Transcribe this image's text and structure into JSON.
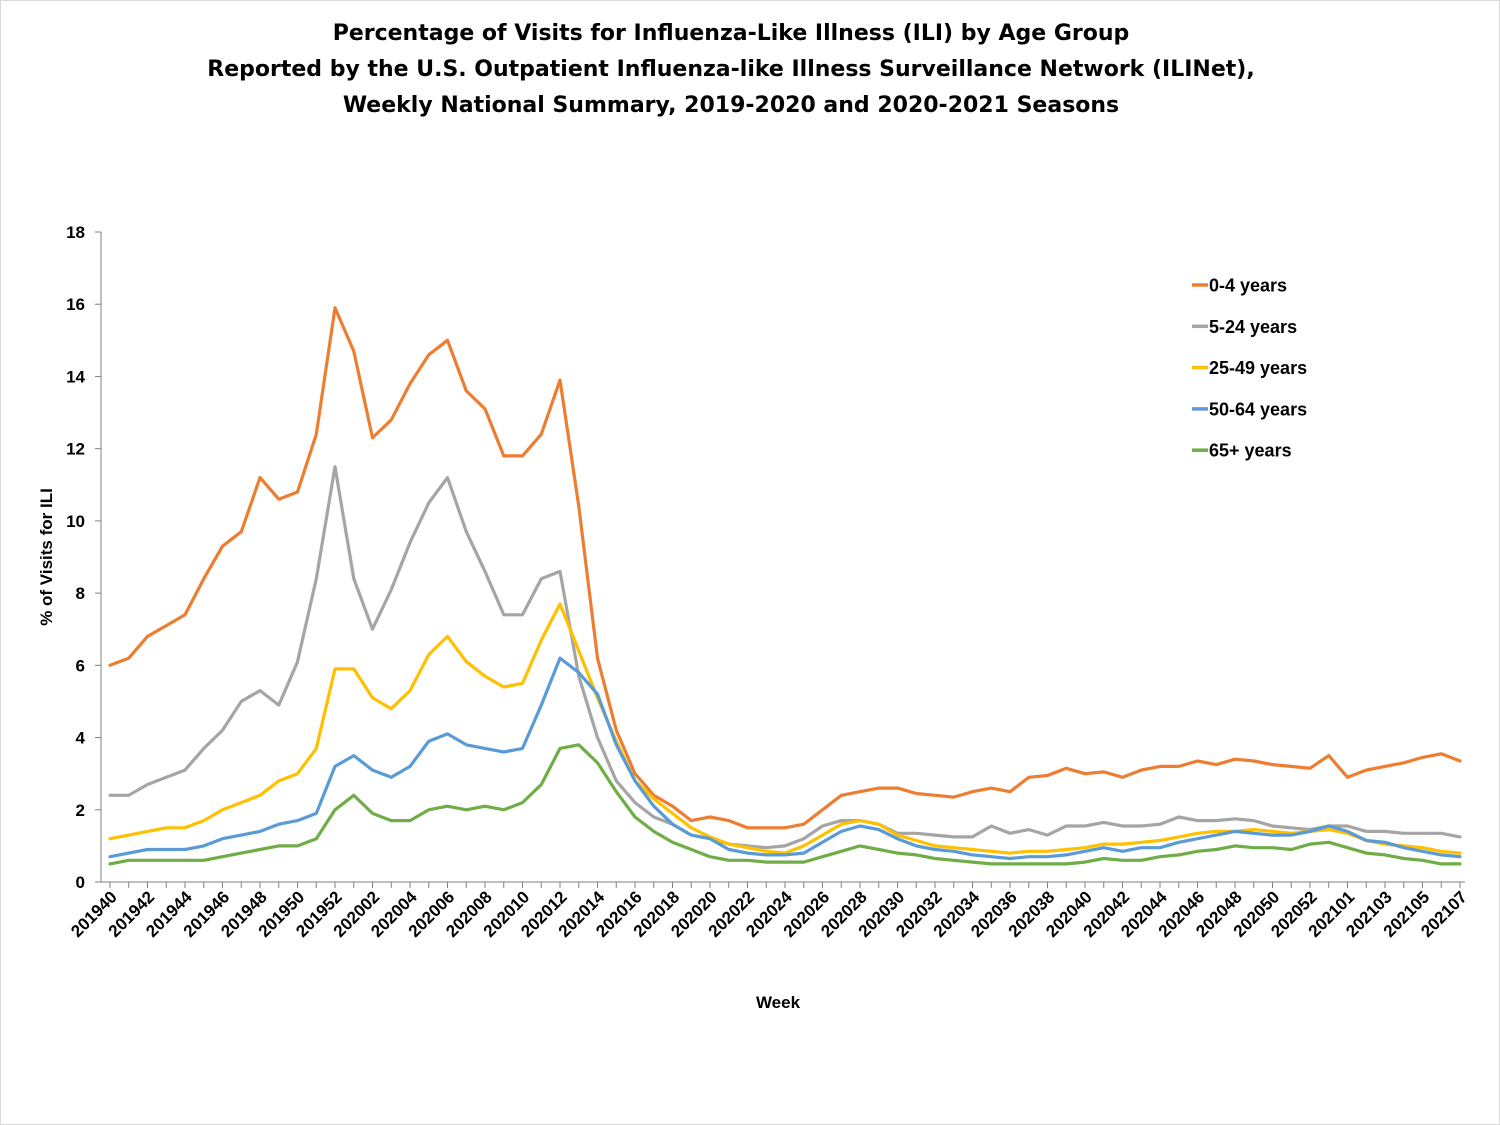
{
  "chart_data": {
    "type": "line",
    "title": "Percentage of Visits for Influenza-Like Illness (ILI) by Age Group",
    "subtitle_lines": [
      "Reported by the U.S. Outpatient Influenza-like Illness Surveillance Network (ILINet),",
      "Weekly National Summary, 2019-2020 and 2020-2021 Seasons"
    ],
    "xlabel": "Week",
    "ylabel": "% of Visits for ILI",
    "ylim": [
      0,
      18
    ],
    "y_ticks": [
      "0",
      "2",
      "4",
      "6",
      "8",
      "10",
      "12",
      "14",
      "16",
      "18"
    ],
    "x_weeks": [
      "201940",
      "201941",
      "201942",
      "201943",
      "201944",
      "201945",
      "201946",
      "201947",
      "201948",
      "201949",
      "201950",
      "201951",
      "201952",
      "202001",
      "202002",
      "202003",
      "202004",
      "202005",
      "202006",
      "202007",
      "202008",
      "202009",
      "202010",
      "202011",
      "202012",
      "202013",
      "202014",
      "202015",
      "202016",
      "202017",
      "202018",
      "202019",
      "202020",
      "202021",
      "202022",
      "202023",
      "202024",
      "202025",
      "202026",
      "202027",
      "202028",
      "202029",
      "202030",
      "202031",
      "202032",
      "202033",
      "202034",
      "202035",
      "202036",
      "202037",
      "202038",
      "202039",
      "202040",
      "202041",
      "202042",
      "202043",
      "202044",
      "202045",
      "202046",
      "202047",
      "202048",
      "202049",
      "202050",
      "202051",
      "202052",
      "202053",
      "202101",
      "202102",
      "202103",
      "202104",
      "202105",
      "202106",
      "202107"
    ],
    "x_tick_labels": [
      "201940",
      "201942",
      "201944",
      "201946",
      "201948",
      "201950",
      "201952",
      "202002",
      "202004",
      "202006",
      "202008",
      "202010",
      "202012",
      "202014",
      "202016",
      "202018",
      "202020",
      "202022",
      "202024",
      "202026",
      "202028",
      "202030",
      "202032",
      "202034",
      "202036",
      "202038",
      "202040",
      "202042",
      "202044",
      "202046",
      "202048",
      "202050",
      "202052",
      "202101",
      "202103",
      "202105",
      "202107"
    ],
    "legend_position": "top-right",
    "grid": false,
    "series": [
      {
        "name": "0-4 years",
        "color": "#ED7D31",
        "values": [
          6.0,
          6.2,
          6.8,
          7.1,
          7.4,
          8.4,
          9.3,
          9.7,
          11.2,
          10.6,
          10.8,
          12.4,
          15.9,
          14.7,
          12.3,
          12.8,
          13.8,
          14.6,
          15.0,
          13.6,
          13.1,
          11.8,
          11.8,
          12.4,
          13.9,
          10.4,
          6.2,
          4.2,
          3.0,
          2.4,
          2.1,
          1.7,
          1.8,
          1.7,
          1.5,
          1.5,
          1.5,
          1.6,
          2.0,
          2.4,
          2.5,
          2.6,
          2.6,
          2.45,
          2.4,
          2.35,
          2.5,
          2.6,
          2.5,
          2.9,
          2.95,
          3.15,
          3.0,
          3.05,
          2.9,
          3.1,
          3.2,
          3.2,
          3.35,
          3.25,
          3.4,
          3.35,
          3.25,
          3.2,
          3.15,
          3.5,
          2.9,
          3.1,
          3.2,
          3.3,
          3.45,
          3.55,
          3.35
        ]
      },
      {
        "name": "5-24 years",
        "color": "#A5A5A5",
        "values": [
          2.4,
          2.4,
          2.7,
          2.9,
          3.1,
          3.7,
          4.2,
          5.0,
          5.3,
          4.9,
          6.1,
          8.4,
          11.5,
          8.4,
          7.0,
          8.1,
          9.4,
          10.5,
          11.2,
          9.7,
          8.6,
          7.4,
          7.4,
          8.4,
          8.6,
          5.7,
          4.0,
          2.8,
          2.2,
          1.8,
          1.6,
          1.3,
          1.2,
          1.05,
          1.0,
          0.95,
          1.0,
          1.2,
          1.55,
          1.7,
          1.7,
          1.6,
          1.35,
          1.35,
          1.3,
          1.25,
          1.25,
          1.55,
          1.35,
          1.45,
          1.3,
          1.55,
          1.55,
          1.65,
          1.55,
          1.55,
          1.6,
          1.8,
          1.7,
          1.7,
          1.75,
          1.7,
          1.55,
          1.5,
          1.45,
          1.55,
          1.55,
          1.4,
          1.4,
          1.35,
          1.35,
          1.35,
          1.25
        ]
      },
      {
        "name": "25-49 years",
        "color": "#FFC000",
        "values": [
          1.2,
          1.3,
          1.4,
          1.5,
          1.5,
          1.7,
          2.0,
          2.2,
          2.4,
          2.8,
          3.0,
          3.7,
          5.9,
          5.9,
          5.1,
          4.8,
          5.3,
          6.3,
          6.8,
          6.1,
          5.7,
          5.4,
          5.5,
          6.7,
          7.7,
          6.4,
          5.1,
          3.9,
          2.8,
          2.3,
          1.9,
          1.5,
          1.25,
          1.05,
          0.95,
          0.85,
          0.8,
          1.0,
          1.3,
          1.6,
          1.7,
          1.6,
          1.3,
          1.15,
          1.0,
          0.95,
          0.9,
          0.85,
          0.8,
          0.85,
          0.85,
          0.9,
          0.95,
          1.05,
          1.05,
          1.1,
          1.15,
          1.25,
          1.35,
          1.4,
          1.4,
          1.45,
          1.4,
          1.35,
          1.4,
          1.45,
          1.35,
          1.15,
          1.05,
          1.0,
          0.95,
          0.85,
          0.8
        ]
      },
      {
        "name": "50-64 years",
        "color": "#5B9BD5",
        "values": [
          0.7,
          0.8,
          0.9,
          0.9,
          0.9,
          1.0,
          1.2,
          1.3,
          1.4,
          1.6,
          1.7,
          1.9,
          3.2,
          3.5,
          3.1,
          2.9,
          3.2,
          3.9,
          4.1,
          3.8,
          3.7,
          3.6,
          3.7,
          4.9,
          6.2,
          5.8,
          5.2,
          3.8,
          2.8,
          2.1,
          1.6,
          1.3,
          1.2,
          0.9,
          0.8,
          0.75,
          0.75,
          0.8,
          1.1,
          1.4,
          1.55,
          1.45,
          1.2,
          1.0,
          0.9,
          0.85,
          0.75,
          0.7,
          0.65,
          0.7,
          0.7,
          0.75,
          0.85,
          0.95,
          0.85,
          0.95,
          0.95,
          1.1,
          1.2,
          1.3,
          1.4,
          1.35,
          1.3,
          1.3,
          1.4,
          1.55,
          1.4,
          1.15,
          1.1,
          0.95,
          0.85,
          0.75,
          0.7
        ]
      },
      {
        "name": "65+ years",
        "color": "#70AD47",
        "values": [
          0.5,
          0.6,
          0.6,
          0.6,
          0.6,
          0.6,
          0.7,
          0.8,
          0.9,
          1.0,
          1.0,
          1.2,
          2.0,
          2.4,
          1.9,
          1.7,
          1.7,
          2.0,
          2.1,
          2.0,
          2.1,
          2.0,
          2.2,
          2.7,
          3.7,
          3.8,
          3.3,
          2.5,
          1.8,
          1.4,
          1.1,
          0.9,
          0.7,
          0.6,
          0.6,
          0.55,
          0.55,
          0.55,
          0.7,
          0.85,
          1.0,
          0.9,
          0.8,
          0.75,
          0.65,
          0.6,
          0.55,
          0.5,
          0.5,
          0.5,
          0.5,
          0.5,
          0.55,
          0.65,
          0.6,
          0.6,
          0.7,
          0.75,
          0.85,
          0.9,
          1.0,
          0.95,
          0.95,
          0.9,
          1.05,
          1.1,
          0.95,
          0.8,
          0.75,
          0.65,
          0.6,
          0.5,
          0.5
        ]
      }
    ]
  }
}
